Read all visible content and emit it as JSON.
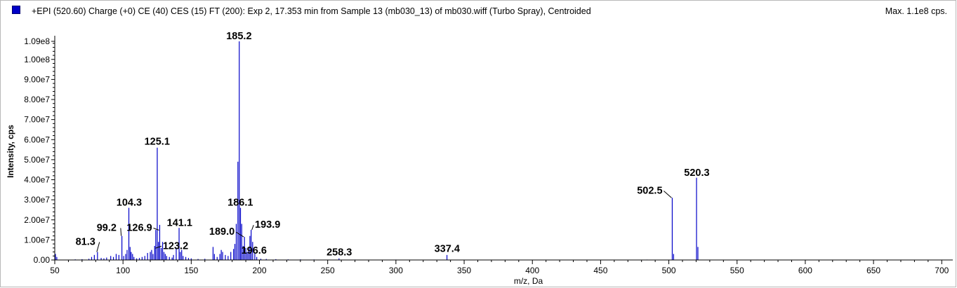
{
  "header": {
    "title": "+EPI (520.60) Charge (+0) CE (40) CES (15) FT (200): Exp 2, 17.353 min from Sample 13 (mb030_13) of mb030.wiff (Turbo Spray), Centroided",
    "max_label": "Max. 1.1e8 cps."
  },
  "colors": {
    "series": "#0000c8",
    "swatch": "#0000c8"
  },
  "chart_data": {
    "type": "bar",
    "title": "",
    "xlabel": "m/z, Da",
    "ylabel": "Intensity, cps",
    "xlim": [
      50,
      705
    ],
    "ylim": [
      0,
      109000000.0
    ],
    "grid": false,
    "x_ticks": [
      50,
      100,
      150,
      200,
      250,
      300,
      350,
      400,
      450,
      500,
      550,
      600,
      650,
      700
    ],
    "y_ticks": [
      {
        "value": 0,
        "label": "0.00"
      },
      {
        "value": 10000000.0,
        "label": "1.00e7"
      },
      {
        "value": 20000000.0,
        "label": "2.00e7"
      },
      {
        "value": 30000000.0,
        "label": "3.00e7"
      },
      {
        "value": 40000000.0,
        "label": "4.00e7"
      },
      {
        "value": 50000000.0,
        "label": "5.00e7"
      },
      {
        "value": 60000000.0,
        "label": "6.00e7"
      },
      {
        "value": 70000000.0,
        "label": "7.00e7"
      },
      {
        "value": 80000000.0,
        "label": "8.00e7"
      },
      {
        "value": 90000000.0,
        "label": "9.00e7"
      },
      {
        "value": 100000000.0,
        "label": "1.00e8"
      },
      {
        "value": 109000000.0,
        "label": "1.09e8"
      }
    ],
    "peaks": [
      {
        "x": 50.5,
        "y": 3000000.0
      },
      {
        "x": 51.5,
        "y": 1500000.0
      },
      {
        "x": 65.0,
        "y": 300000.0
      },
      {
        "x": 70.0,
        "y": 400000.0
      },
      {
        "x": 75.0,
        "y": 600000.0
      },
      {
        "x": 77.0,
        "y": 1500000.0
      },
      {
        "x": 79.0,
        "y": 2500000.0
      },
      {
        "x": 81.3,
        "y": 4000000.0
      },
      {
        "x": 84.0,
        "y": 1000000.0
      },
      {
        "x": 86.0,
        "y": 800000.0
      },
      {
        "x": 88.0,
        "y": 1200000.0
      },
      {
        "x": 91.0,
        "y": 2000000.0
      },
      {
        "x": 93.0,
        "y": 1500000.0
      },
      {
        "x": 95.0,
        "y": 3000000.0
      },
      {
        "x": 97.0,
        "y": 2500000.0
      },
      {
        "x": 99.2,
        "y": 12000000.0
      },
      {
        "x": 100.5,
        "y": 2000000.0
      },
      {
        "x": 102.0,
        "y": 3000000.0
      },
      {
        "x": 103.0,
        "y": 5000000.0
      },
      {
        "x": 104.3,
        "y": 26000000.0
      },
      {
        "x": 105.2,
        "y": 6500000.0
      },
      {
        "x": 106.0,
        "y": 4000000.0
      },
      {
        "x": 107.0,
        "y": 3000000.0
      },
      {
        "x": 108.0,
        "y": 1500000.0
      },
      {
        "x": 110.0,
        "y": 800000.0
      },
      {
        "x": 112.0,
        "y": 1000000.0
      },
      {
        "x": 114.0,
        "y": 1500000.0
      },
      {
        "x": 116.0,
        "y": 2000000.0
      },
      {
        "x": 118.0,
        "y": 3500000.0
      },
      {
        "x": 120.0,
        "y": 4000000.0
      },
      {
        "x": 121.0,
        "y": 5000000.0
      },
      {
        "x": 122.0,
        "y": 3000000.0
      },
      {
        "x": 123.2,
        "y": 7000000.0
      },
      {
        "x": 124.0,
        "y": 15000000.0
      },
      {
        "x": 125.1,
        "y": 56000000.0
      },
      {
        "x": 126.0,
        "y": 9000000.0
      },
      {
        "x": 126.9,
        "y": 17500000.0
      },
      {
        "x": 128.0,
        "y": 6000000.0
      },
      {
        "x": 129.0,
        "y": 9000000.0
      },
      {
        "x": 130.0,
        "y": 4000000.0
      },
      {
        "x": 131.0,
        "y": 3000000.0
      },
      {
        "x": 132.0,
        "y": 2000000.0
      },
      {
        "x": 134.0,
        "y": 1500000.0
      },
      {
        "x": 136.0,
        "y": 1200000.0
      },
      {
        "x": 137.0,
        "y": 2500000.0
      },
      {
        "x": 139.0,
        "y": 6000000.0
      },
      {
        "x": 141.1,
        "y": 16000000.0
      },
      {
        "x": 142.0,
        "y": 4000000.0
      },
      {
        "x": 143.0,
        "y": 5000000.0
      },
      {
        "x": 144.0,
        "y": 2000000.0
      },
      {
        "x": 146.0,
        "y": 1500000.0
      },
      {
        "x": 148.0,
        "y": 1000000.0
      },
      {
        "x": 150.0,
        "y": 800000.0
      },
      {
        "x": 155.0,
        "y": 500000.0
      },
      {
        "x": 160.0,
        "y": 600000.0
      },
      {
        "x": 166.0,
        "y": 6500000.0
      },
      {
        "x": 167.0,
        "y": 3000000.0
      },
      {
        "x": 169.0,
        "y": 1500000.0
      },
      {
        "x": 171.0,
        "y": 3000000.0
      },
      {
        "x": 172.0,
        "y": 5000000.0
      },
      {
        "x": 173.0,
        "y": 4000000.0
      },
      {
        "x": 175.0,
        "y": 2500000.0
      },
      {
        "x": 177.0,
        "y": 2000000.0
      },
      {
        "x": 179.0,
        "y": 4000000.0
      },
      {
        "x": 181.0,
        "y": 5500000.0
      },
      {
        "x": 182.0,
        "y": 8000000.0
      },
      {
        "x": 183.0,
        "y": 18000000.0
      },
      {
        "x": 184.2,
        "y": 49000000.0
      },
      {
        "x": 185.2,
        "y": 109000000.0
      },
      {
        "x": 186.1,
        "y": 26000000.0
      },
      {
        "x": 187.0,
        "y": 18000000.0
      },
      {
        "x": 188.0,
        "y": 7000000.0
      },
      {
        "x": 189.0,
        "y": 11500000.0
      },
      {
        "x": 190.0,
        "y": 6000000.0
      },
      {
        "x": 191.0,
        "y": 4000000.0
      },
      {
        "x": 192.0,
        "y": 6500000.0
      },
      {
        "x": 193.0,
        "y": 12000000.0
      },
      {
        "x": 193.9,
        "y": 15000000.0
      },
      {
        "x": 195.0,
        "y": 9000000.0
      },
      {
        "x": 196.6,
        "y": 3500000.0
      },
      {
        "x": 198.0,
        "y": 1500000.0
      },
      {
        "x": 201.0,
        "y": 600000.0
      },
      {
        "x": 205.0,
        "y": 500000.0
      },
      {
        "x": 212.0,
        "y": 400000.0
      },
      {
        "x": 221.0,
        "y": 300000.0
      },
      {
        "x": 230.0,
        "y": 300000.0
      },
      {
        "x": 240.0,
        "y": 250000.0
      },
      {
        "x": 258.3,
        "y": 800000.0
      },
      {
        "x": 270.0,
        "y": 200000.0
      },
      {
        "x": 300.0,
        "y": 200000.0
      },
      {
        "x": 337.4,
        "y": 2500000.0
      },
      {
        "x": 420.0,
        "y": 150000.0
      },
      {
        "x": 484.0,
        "y": 200000.0
      },
      {
        "x": 502.5,
        "y": 31000000.0
      },
      {
        "x": 503.5,
        "y": 3000000.0
      },
      {
        "x": 520.3,
        "y": 41000000.0
      },
      {
        "x": 521.3,
        "y": 6500000.0
      }
    ],
    "annotations": [
      {
        "text": "81.3",
        "peak_x": 81.3,
        "label_x": 72.5,
        "label_y": 7500000.0,
        "leader": true
      },
      {
        "text": "99.2",
        "peak_x": 99.2,
        "label_x": 88.0,
        "label_y": 14500000.0,
        "leader": true
      },
      {
        "text": "104.3",
        "peak_x": 104.3,
        "label_x": 104.5,
        "label_y": 27000000.0,
        "leader": false
      },
      {
        "text": "125.1",
        "peak_x": 125.1,
        "label_x": 125.0,
        "label_y": 57500000.0,
        "leader": false
      },
      {
        "text": "126.9",
        "peak_x": 126.9,
        "label_x": 112.0,
        "label_y": 14500000.0,
        "leader": true
      },
      {
        "text": "123.2",
        "peak_x": 123.2,
        "label_x": 138.5,
        "label_y": 5500000.0,
        "leader": true
      },
      {
        "text": "141.1",
        "peak_x": 141.1,
        "label_x": 141.5,
        "label_y": 17000000.0,
        "leader": false
      },
      {
        "text": "185.2",
        "peak_x": 185.2,
        "label_x": 185.0,
        "label_y": 110000000.0,
        "leader": false
      },
      {
        "text": "186.1",
        "peak_x": 186.1,
        "label_x": 186.0,
        "label_y": 27000000.0,
        "leader": false
      },
      {
        "text": "189.0",
        "peak_x": 189.0,
        "label_x": 172.5,
        "label_y": 12500000.0,
        "leader": true
      },
      {
        "text": "193.9",
        "peak_x": 193.9,
        "label_x": 206.0,
        "label_y": 16000000.0,
        "leader": true
      },
      {
        "text": "196.6",
        "peak_x": 196.6,
        "label_x": 196.0,
        "label_y": 3200000.0,
        "leader": false
      },
      {
        "text": "258.3",
        "peak_x": 258.3,
        "label_x": 258.5,
        "label_y": 2200000.0,
        "leader": false
      },
      {
        "text": "337.4",
        "peak_x": 337.4,
        "label_x": 337.5,
        "label_y": 4000000.0,
        "leader": false
      },
      {
        "text": "502.5",
        "peak_x": 502.5,
        "label_x": 486.0,
        "label_y": 33000000.0,
        "leader": true
      },
      {
        "text": "520.3",
        "peak_x": 520.3,
        "label_x": 520.5,
        "label_y": 42000000.0,
        "leader": false
      }
    ]
  }
}
